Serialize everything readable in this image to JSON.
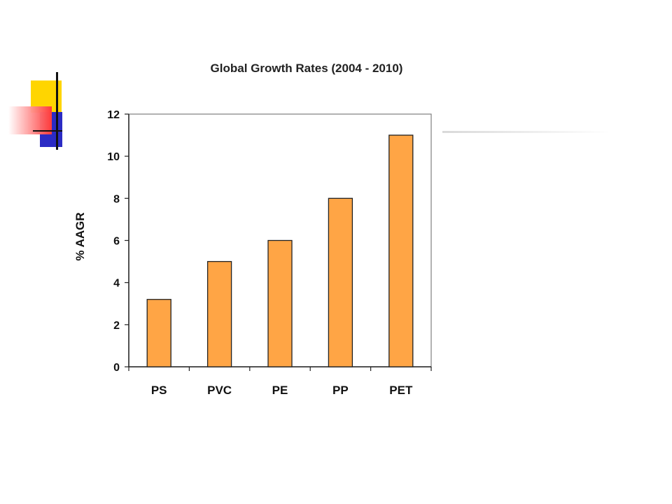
{
  "chart_data": {
    "type": "bar",
    "title": "Global Growth Rates (2004 - 2010)",
    "xlabel": "",
    "ylabel": "% AAGR",
    "categories": [
      "PS",
      "PVC",
      "PE",
      "PP",
      "PET"
    ],
    "values": [
      3.2,
      5,
      6,
      8,
      11
    ],
    "ylim": [
      0,
      12
    ],
    "yticks": [
      "0",
      "2",
      "4",
      "6",
      "8",
      "10",
      "12"
    ],
    "grid": false,
    "legend": "none",
    "bar_color": "#FFA545",
    "bar_stroke": "#222222"
  }
}
